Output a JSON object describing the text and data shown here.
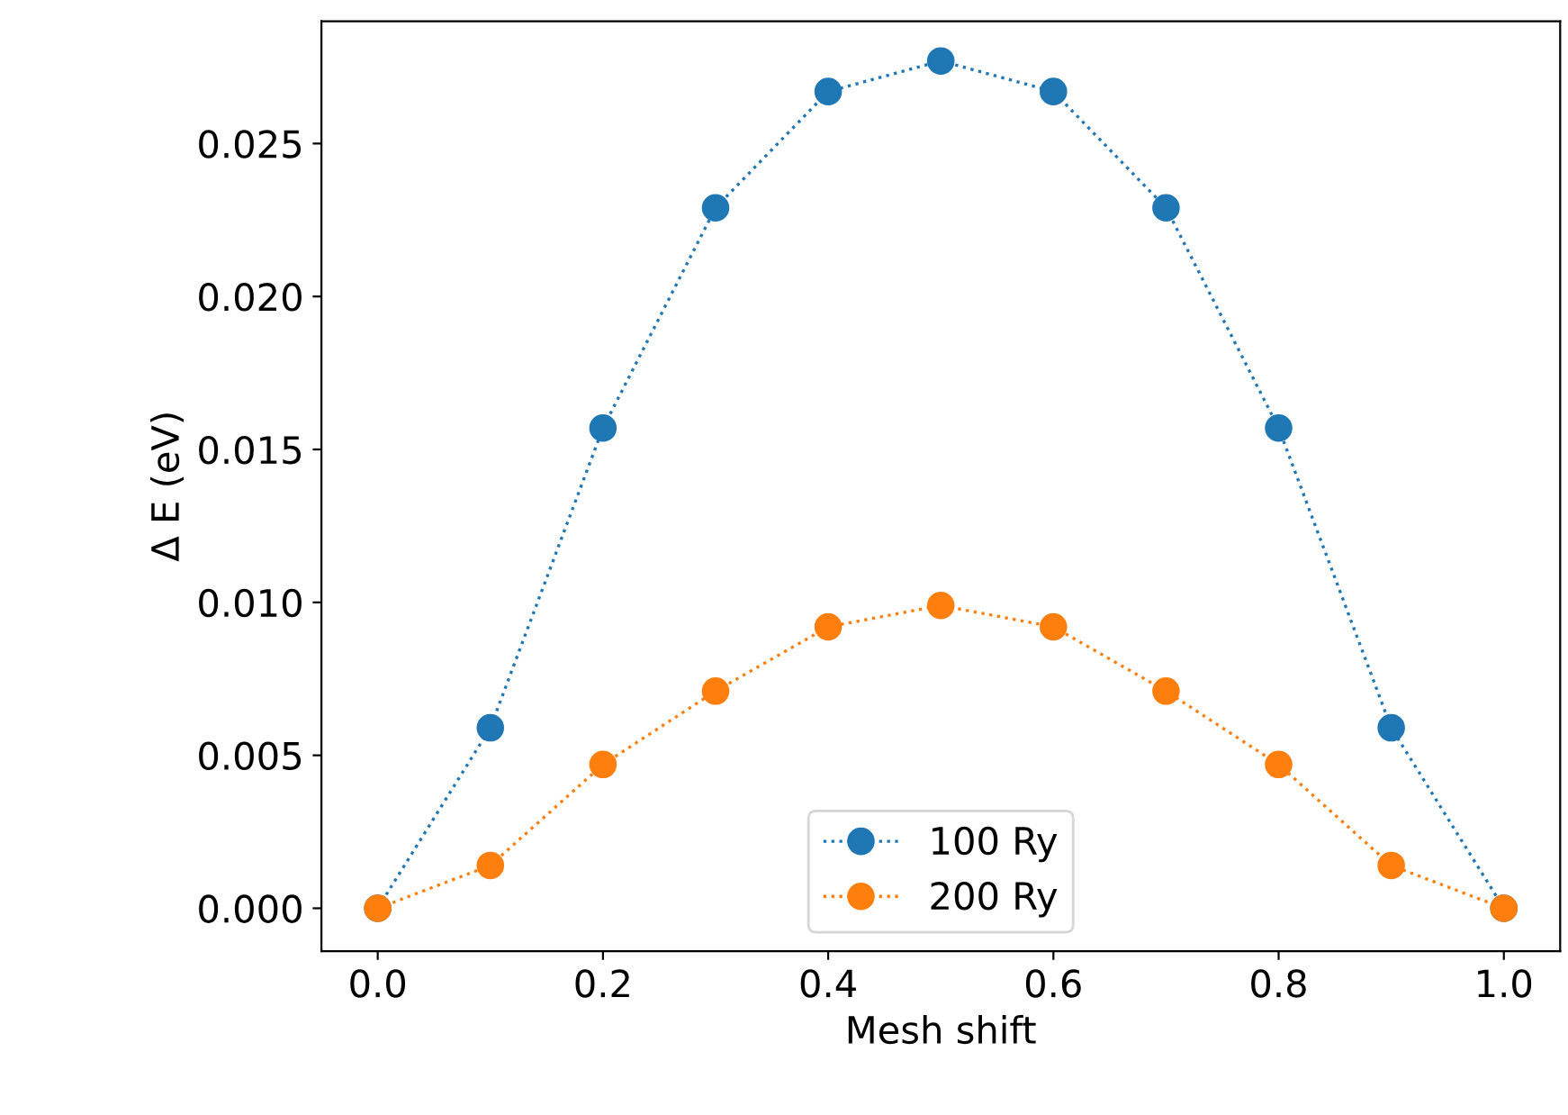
{
  "chart_data": {
    "type": "line",
    "xlabel": "Mesh shift",
    "ylabel": "Δ E (eV)",
    "x": [
      0.0,
      0.1,
      0.2,
      0.3,
      0.4,
      0.5,
      0.6,
      0.7,
      0.8,
      0.9,
      1.0
    ],
    "series": [
      {
        "name": "100 Ry",
        "color": "#1f77b4",
        "values": [
          0.0,
          0.0059,
          0.0157,
          0.0229,
          0.0267,
          0.0277,
          0.0267,
          0.0229,
          0.0157,
          0.0059,
          0.0
        ]
      },
      {
        "name": "200 Ry",
        "color": "#ff7f0e",
        "values": [
          0.0,
          0.0014,
          0.0047,
          0.0071,
          0.0092,
          0.0099,
          0.0092,
          0.0071,
          0.0047,
          0.0014,
          0.0
        ]
      }
    ],
    "xlim": [
      -0.05,
      1.05
    ],
    "ylim": [
      -0.0014,
      0.029
    ],
    "xticks": [
      {
        "value": 0.0,
        "label": "0.0"
      },
      {
        "value": 0.2,
        "label": "0.2"
      },
      {
        "value": 0.4,
        "label": "0.4"
      },
      {
        "value": 0.6,
        "label": "0.6"
      },
      {
        "value": 0.8,
        "label": "0.8"
      },
      {
        "value": 1.0,
        "label": "1.0"
      }
    ],
    "yticks": [
      {
        "value": 0.0,
        "label": "0.000"
      },
      {
        "value": 0.005,
        "label": "0.005"
      },
      {
        "value": 0.01,
        "label": "0.010"
      },
      {
        "value": 0.015,
        "label": "0.015"
      },
      {
        "value": 0.02,
        "label": "0.020"
      },
      {
        "value": 0.025,
        "label": "0.025"
      }
    ],
    "legend": "bottom",
    "marker": "circle",
    "line_style": "dotted",
    "grid": false
  }
}
